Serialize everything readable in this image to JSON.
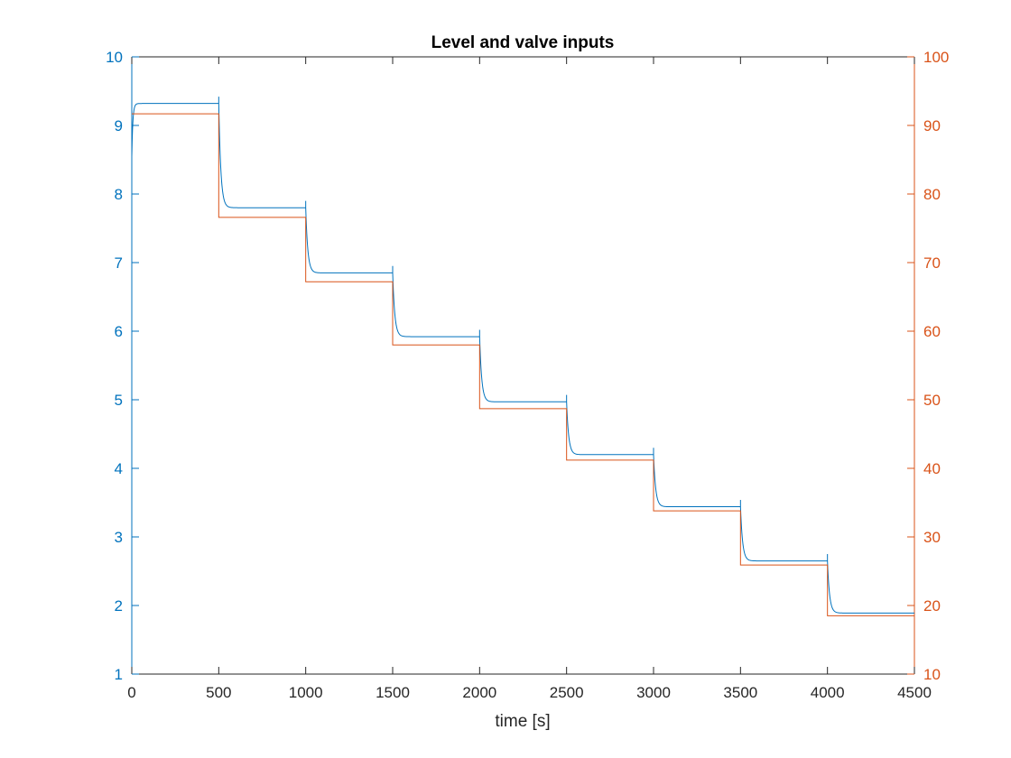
{
  "chart_data": {
    "type": "line",
    "title": "Level and valve inputs",
    "xlabel": "time [s]",
    "ylabel": "",
    "ylabel_right": "",
    "xlim": [
      0,
      4500
    ],
    "ylim": [
      1,
      10
    ],
    "ylim_right": [
      10,
      100
    ],
    "x_ticks": [
      0,
      500,
      1000,
      1500,
      2000,
      2500,
      3000,
      3500,
      4000,
      4500
    ],
    "y_ticks": [
      1,
      2,
      3,
      4,
      5,
      6,
      7,
      8,
      9,
      10
    ],
    "y_ticks_right": [
      10,
      20,
      30,
      40,
      50,
      60,
      70,
      80,
      90,
      100
    ],
    "grid": false,
    "colors": {
      "left_axis": "#0072BD",
      "right_axis": "#D95319",
      "frame": "#262626"
    },
    "series": [
      {
        "axis": "left",
        "color": "#0072BD",
        "step_times": [
          0,
          500,
          1000,
          1500,
          2000,
          2500,
          3000,
          3500,
          4000
        ],
        "step_levels": [
          9.32,
          7.8,
          6.85,
          5.92,
          4.97,
          4.2,
          3.44,
          2.65,
          1.89
        ],
        "start_value": 8.55
      },
      {
        "axis": "right",
        "color": "#D95319",
        "step_times": [
          0,
          500,
          1000,
          1500,
          2000,
          2500,
          3000,
          3500,
          4000
        ],
        "step_levels": [
          91.7,
          76.6,
          67.2,
          58.0,
          48.7,
          41.2,
          33.8,
          25.9,
          18.5
        ]
      }
    ]
  }
}
